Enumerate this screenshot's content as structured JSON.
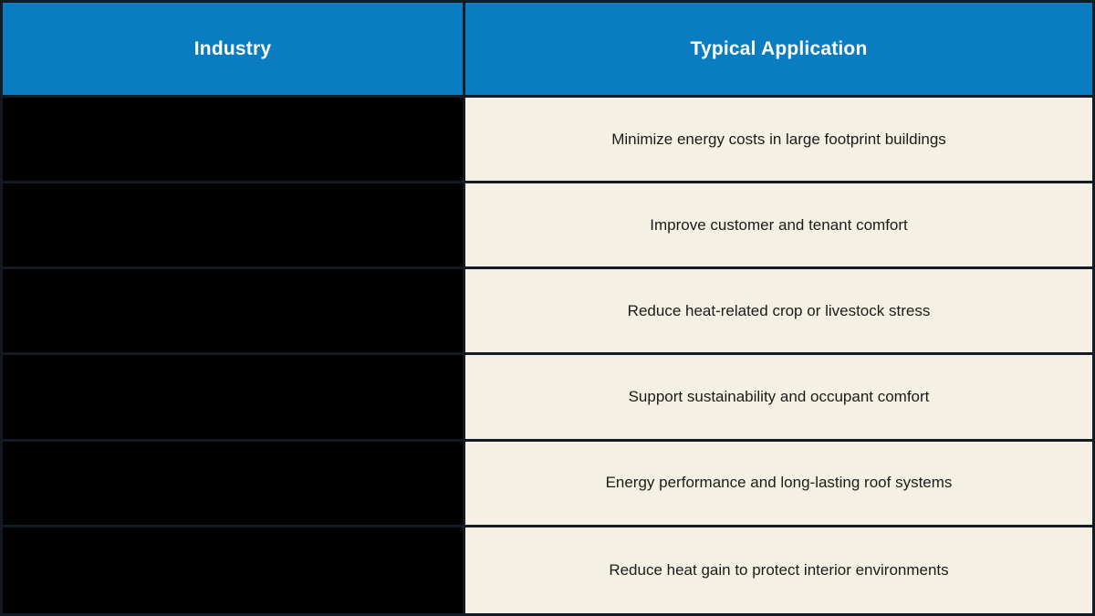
{
  "chart_data": {
    "type": "table",
    "columns": [
      "Industry",
      "Typical Application"
    ],
    "rows": [
      {
        "industry": "",
        "application": "Minimize energy costs in large footprint buildings"
      },
      {
        "industry": "",
        "application": "Improve customer and tenant comfort"
      },
      {
        "industry": "",
        "application": "Reduce heat-related crop or livestock stress"
      },
      {
        "industry": "",
        "application": "Support sustainability and occupant comfort"
      },
      {
        "industry": "",
        "application": "Energy performance and long-lasting roof systems"
      },
      {
        "industry": "",
        "application": "Reduce heat gain to protect interior environments"
      }
    ]
  },
  "colors": {
    "header_bg": "#0a7dc1",
    "header_text": "#ffffff",
    "industry_cell_bg": "#000000",
    "application_cell_bg": "#f4f1e4",
    "application_text": "#1b1b1b",
    "border": "#131a23"
  }
}
